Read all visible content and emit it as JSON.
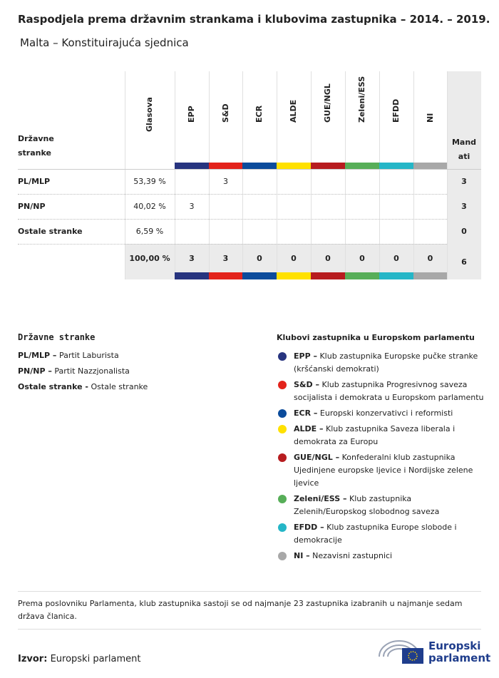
{
  "header": {
    "title": "Raspodjela prema državnim strankama i klubovima zastupnika – 2014. – 2019.",
    "subtitle": "Malta – Konstituirajuća sjednica"
  },
  "table": {
    "row_header": "Državne stranke",
    "votes_header": "Glasova",
    "total_header": "Mandati",
    "groups": [
      {
        "name": "EPP",
        "color": "#27347f"
      },
      {
        "name": "S&D",
        "color": "#e3231b"
      },
      {
        "name": "ECR",
        "color": "#0b4b9b"
      },
      {
        "name": "ALDE",
        "color": "#ffe100"
      },
      {
        "name": "GUE/NGL",
        "color": "#b71c1f"
      },
      {
        "name": "Zeleni/ESS",
        "color": "#57ae58"
      },
      {
        "name": "EFDD",
        "color": "#25b6c7"
      },
      {
        "name": "NI",
        "color": "#a8a8a8"
      }
    ],
    "rows": [
      {
        "party": "PL/MLP",
        "votes": "53,39 %",
        "seats": [
          null,
          3,
          null,
          null,
          null,
          null,
          null,
          null
        ],
        "total": 3
      },
      {
        "party": "PN/NP",
        "votes": "40,02 %",
        "seats": [
          3,
          null,
          null,
          null,
          null,
          null,
          null,
          null
        ],
        "total": 3
      },
      {
        "party": "Ostale stranke",
        "votes": "6,59 %",
        "seats": [
          null,
          null,
          null,
          null,
          null,
          null,
          null,
          null
        ],
        "total": 0
      }
    ],
    "totals": {
      "votes": "100,00 %",
      "seats": [
        3,
        3,
        0,
        0,
        0,
        0,
        0,
        0
      ],
      "total": 6
    }
  },
  "legend_parties": {
    "title": "Državne stranke",
    "items": [
      {
        "abbr": "PL/MLP –",
        "name": "Partit Laburista"
      },
      {
        "abbr": "PN/NP –",
        "name": "Partit Nazzjonalista"
      },
      {
        "abbr": "Ostale stranke -",
        "name": "Ostale stranke"
      }
    ]
  },
  "legend_groups": {
    "title": "Klubovi zastupnika u Europskom parlamentu",
    "items": [
      {
        "abbr": "EPP –",
        "name": "Klub zastupnika Europske pučke stranke (kršćanski demokrati)"
      },
      {
        "abbr": "S&D –",
        "name": "Klub zastupnika Progresivnog saveza socijalista i demokrata u Europskom parlamentu"
      },
      {
        "abbr": "ECR –",
        "name": "Europski konzervativci i reformisti"
      },
      {
        "abbr": "ALDE –",
        "name": "Klub zastupnika Saveza liberala i demokrata za Europu"
      },
      {
        "abbr": "GUE/NGL –",
        "name": "Konfederalni klub zastupnika Ujedinjene europske ljevice i Nordijske zelene ljevice"
      },
      {
        "abbr": "Zeleni/ESS –",
        "name": "Klub zastupnika Zelenih/Europskog slobodnog saveza"
      },
      {
        "abbr": "EFDD –",
        "name": "Klub zastupnika Europe slobode i demokracije"
      },
      {
        "abbr": "NI –",
        "name": "Nezavisni zastupnici"
      }
    ]
  },
  "footnote": "Prema poslovniku Parlamenta, klub zastupnika sastoji se od najmanje 23 zastupnika izabranih u najmanje sedam država članica.",
  "source": {
    "label": "Izvor:",
    "text": "Europski parlament"
  },
  "logo": "Europski parlament"
}
